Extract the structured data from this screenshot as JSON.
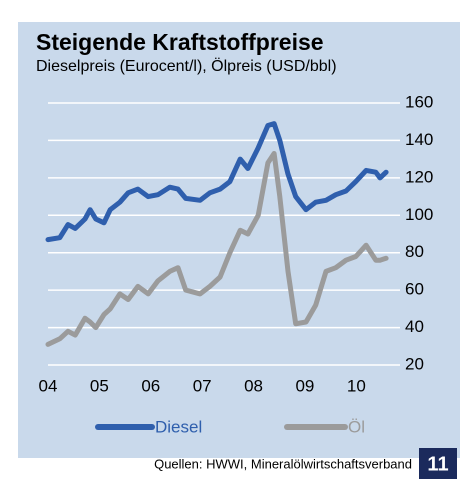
{
  "chart_data": {
    "type": "line",
    "title": "Steigende Kraftstoffpreise",
    "subtitle": "Dieselpreis (Eurocent/l), Ölpreis (USD/bbl)",
    "source": "Quellen: HWWI, Mineralölwirtschaftsverband",
    "page_number": "11",
    "x": [
      2004.0,
      2004.23,
      2004.39,
      2004.53,
      2004.72,
      2004.82,
      2004.93,
      2005.09,
      2005.21,
      2005.4,
      2005.56,
      2005.75,
      2005.95,
      2006.14,
      2006.37,
      2006.53,
      2006.68,
      2006.96,
      2007.15,
      2007.35,
      2007.54,
      2007.74,
      2007.89,
      2008.09,
      2008.28,
      2008.4,
      2008.51,
      2008.67,
      2008.82,
      2009.02,
      2009.21,
      2009.41,
      2009.6,
      2009.8,
      2009.99,
      2010.19,
      2010.38,
      2010.46,
      2010.58
    ],
    "series": [
      {
        "name": "Diesel",
        "color": "#2f5fad",
        "values": [
          87,
          88,
          95,
          93,
          98,
          103,
          98,
          96,
          103,
          107,
          112,
          114,
          110,
          111,
          115,
          114,
          109,
          108,
          112,
          114,
          118,
          130,
          125,
          136,
          148,
          149,
          140,
          122,
          110,
          103,
          107,
          108,
          111,
          113,
          118,
          124,
          123,
          120,
          123
        ]
      },
      {
        "name": "Öl",
        "color": "#9b9b9b",
        "values": [
          31,
          34,
          38,
          36,
          45,
          43,
          40,
          47,
          50,
          58,
          55,
          62,
          58,
          65,
          70,
          72,
          60,
          58,
          62,
          67,
          80,
          92,
          90,
          100,
          128,
          133,
          110,
          70,
          42,
          43,
          52,
          70,
          72,
          76,
          78,
          84,
          76,
          76,
          77
        ]
      }
    ],
    "xlim": [
      2004,
      2010.85
    ],
    "xticks": [
      {
        "value": 2004,
        "label": "04"
      },
      {
        "value": 2005,
        "label": "05"
      },
      {
        "value": 2006,
        "label": "06"
      },
      {
        "value": 2007,
        "label": "07"
      },
      {
        "value": 2008,
        "label": "08"
      },
      {
        "value": 2009,
        "label": "09"
      },
      {
        "value": 2010,
        "label": "10"
      }
    ],
    "ylim": [
      20,
      160
    ],
    "yticks": [
      20,
      40,
      60,
      80,
      100,
      120,
      140,
      160
    ],
    "grid": true,
    "background": "#c9d9eb"
  }
}
